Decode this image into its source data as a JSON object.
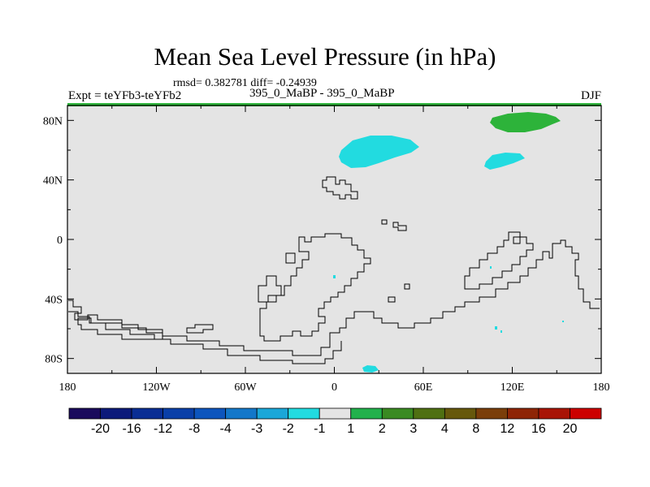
{
  "chart_data": {
    "type": "map-contour",
    "title": "Mean Sea Level Pressure (in hPa)",
    "stats": "rmsd= 0.382781 diff= -0.24939",
    "expt_label": "Expt = teYFb3-teYFb2",
    "experiment_name": "395_0_MaBP - 395_0_MaBP",
    "season": "DJF",
    "x_ticks": [
      "180",
      "120W",
      "60W",
      "0",
      "60E",
      "120E",
      "180"
    ],
    "y_ticks": [
      "80N",
      "40N",
      "0",
      "40S",
      "80S"
    ],
    "x_range_deg": [
      -180,
      180
    ],
    "y_range_deg": [
      -90,
      90
    ],
    "colorbar": {
      "labels": [
        "-20",
        "-16",
        "-12",
        "-8",
        "-4",
        "-3",
        "-2",
        "-1",
        "1",
        "2",
        "3",
        "4",
        "8",
        "12",
        "16",
        "20"
      ],
      "colors": [
        "#1a0a5c",
        "#0c1a7a",
        "#0a2e94",
        "#0a3fa8",
        "#0d55bd",
        "#1377c9",
        "#1aa7d8",
        "#22dbe0",
        "#e4e4e4",
        "#22b14c",
        "#3a8a22",
        "#4f7012",
        "#66580c",
        "#7a3e0a",
        "#8e2506",
        "#a81406",
        "#cc0000"
      ]
    },
    "highlighted_regions": [
      {
        "name": "arctic-positive",
        "value_bin": "1 to 2",
        "color": "#2db33a"
      },
      {
        "name": "north-atlantic-negative",
        "value_bin": "-2 to -1",
        "color": "#22dbe0"
      },
      {
        "name": "north-pacific-negative",
        "value_bin": "-2 to -1",
        "color": "#22dbe0"
      },
      {
        "name": "southern-ocean-negative",
        "value_bin": "-2 to -1",
        "color": "#22dbe0"
      }
    ]
  }
}
